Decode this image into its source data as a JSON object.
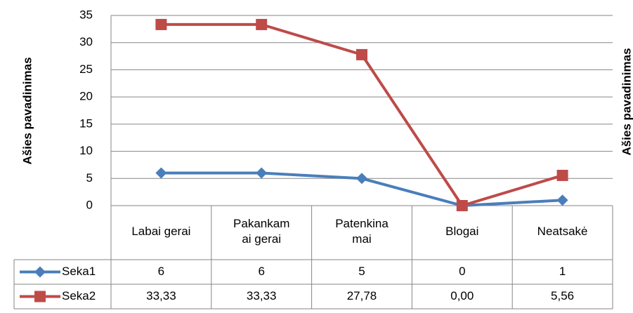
{
  "chart_data": {
    "type": "line",
    "y_label": "Ašies pavadinimas",
    "right_axis_label": "Ašies pavadinimas",
    "categories": [
      "Labai gerai",
      "Pakankam\nai gerai",
      "Patenkina\nmai",
      "Blogai",
      "Neatsakė"
    ],
    "series": [
      {
        "name": "Seka1",
        "color": "#4a7ebb",
        "marker": "diamond",
        "values": [
          6,
          6,
          5,
          0,
          1
        ]
      },
      {
        "name": "Seka2",
        "color": "#be4b48",
        "marker": "square",
        "values": [
          33.33,
          33.33,
          27.78,
          0,
          5.56
        ],
        "value_labels": [
          "33,33",
          "33,33",
          "27,78",
          "0,00",
          "5,56"
        ]
      }
    ],
    "ylim": [
      0,
      35
    ],
    "yticks": [
      0,
      5,
      10,
      15,
      20,
      25,
      30,
      35
    ],
    "grid": true,
    "data_table": true
  }
}
